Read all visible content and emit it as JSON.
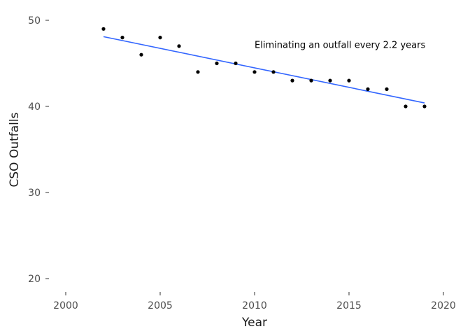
{
  "chart_data": {
    "type": "scatter",
    "xlabel": "Year",
    "ylabel": "CSO Outfalls",
    "xlim": [
      2000,
      2020
    ],
    "ylim": [
      20,
      50
    ],
    "xticks": [
      2000,
      2005,
      2010,
      2015,
      2020
    ],
    "yticks": [
      20,
      30,
      40,
      50
    ],
    "grid": false,
    "series": [
      {
        "x": [
          2002,
          2003,
          2004,
          2005,
          2006,
          2007,
          2008,
          2009,
          2010,
          2011,
          2012,
          2013,
          2014,
          2015,
          2016,
          2017,
          2018,
          2019
        ],
        "y": [
          49,
          48,
          46,
          48,
          47,
          44,
          45,
          45,
          44,
          44,
          43,
          43,
          43,
          43,
          42,
          42,
          40,
          40
        ]
      }
    ],
    "trendline": {
      "x": [
        2002,
        2019
      ],
      "y": [
        48.1,
        40.4
      ]
    },
    "annotation": {
      "text": "Eliminating an outfall every 2.2 years",
      "x": 2010,
      "y": 46.8
    },
    "colors": {
      "points": "#000000",
      "trendline": "#3366ff",
      "ticks": "#4d4d4d"
    }
  }
}
